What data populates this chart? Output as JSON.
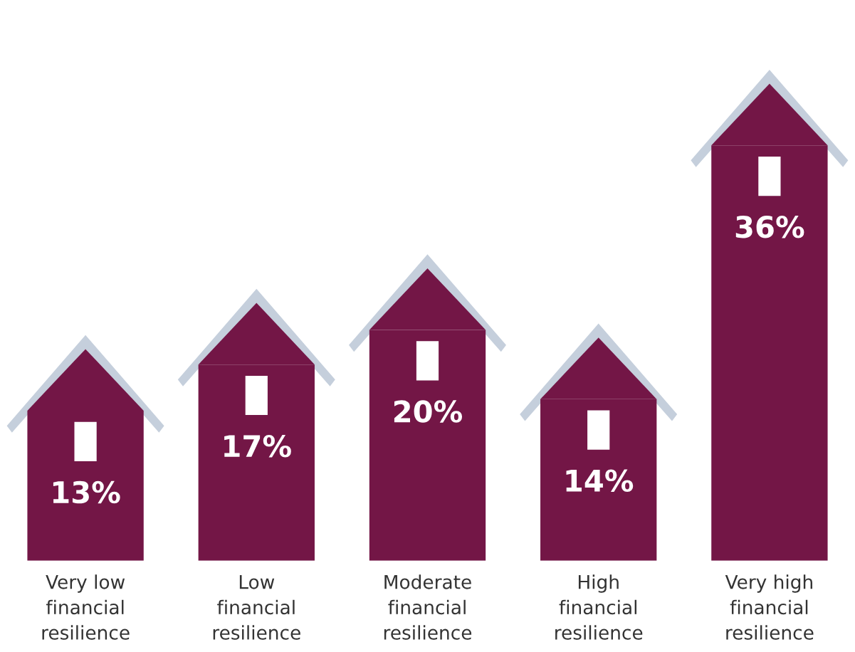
{
  "chart_data": {
    "type": "bar",
    "categories": [
      "Very low\nfinancial\nresilience",
      "Low\nfinancial\nresilience",
      "Moderate\nfinancial\nresilience",
      "High\nfinancial\nresilience",
      "Very high\nfinancial\nresilience"
    ],
    "values": [
      13,
      17,
      20,
      14,
      36
    ],
    "value_labels": [
      "13%",
      "17%",
      "20%",
      "14%",
      "36%"
    ],
    "color": "#731646",
    "grid": false,
    "legend": false,
    "tick_labels": "x"
  }
}
